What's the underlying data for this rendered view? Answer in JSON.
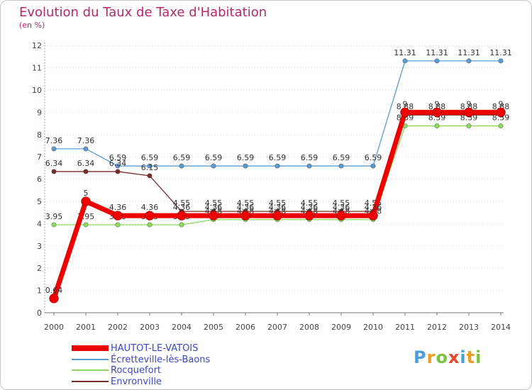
{
  "chart_data": {
    "type": "line",
    "title": "Evolution du Taux de Taxe d'Habitation",
    "subtitle": "(en %)",
    "xlabel": "",
    "ylabel": "",
    "ylim": [
      0,
      12
    ],
    "yticks": [
      0,
      1,
      2,
      3,
      4,
      5,
      6,
      7,
      8,
      9,
      10,
      11,
      12
    ],
    "categories": [
      "2000",
      "2001",
      "2002",
      "2003",
      "2004",
      "2005",
      "2006",
      "2007",
      "2008",
      "2009",
      "2010",
      "2011",
      "2012",
      "2013",
      "2014"
    ],
    "grid": "horizontal dotted",
    "legend_position": "bottom-left",
    "series": [
      {
        "name": "Écretteville-lès-Baons",
        "color": "#5b9bd5",
        "values": [
          7.36,
          7.36,
          6.59,
          6.59,
          6.59,
          6.59,
          6.59,
          6.59,
          6.59,
          6.59,
          6.59,
          11.31,
          11.31,
          11.31,
          11.31
        ],
        "labels": [
          "7.36",
          "7.36",
          "6.59",
          "6.59",
          "6.59",
          "6.59",
          "6.59",
          "6.59",
          "6.59",
          "6.59",
          "6.59",
          "11.31",
          "11.31",
          "11.31",
          "11.31"
        ]
      },
      {
        "name": "Rocquefort",
        "color": "#8ddb5a",
        "values": [
          3.95,
          3.95,
          3.95,
          3.95,
          3.95,
          4.18,
          4.18,
          4.18,
          4.18,
          4.18,
          4.18,
          8.39,
          8.39,
          8.39,
          8.39
        ],
        "labels": [
          "3.95",
          "3.95",
          "3.95",
          "3.95",
          "3.95",
          "4.18",
          "4.18",
          "4.18",
          "4.18",
          "4.18",
          "4.18",
          "8.39",
          "8.39",
          "8.39",
          "8.39"
        ]
      },
      {
        "name": "Envronville",
        "color": "#7a2b2b",
        "values": [
          6.34,
          6.34,
          6.34,
          6.15,
          4.55,
          4.55,
          4.55,
          4.55,
          4.55,
          4.55,
          4.55,
          8.88,
          8.88,
          8.88,
          8.88
        ],
        "labels": [
          "6.34",
          "6.34",
          "6.34",
          "6.15",
          "4.55",
          "4.55",
          "4.55",
          "4.55",
          "4.55",
          "4.55",
          "4.55",
          "8.88",
          "8.88",
          "8.88",
          "8.88"
        ]
      },
      {
        "name": "HAUTOT-LE-VATOIS",
        "color": "#ee0000",
        "values": [
          0.64,
          5,
          4.36,
          4.36,
          4.36,
          4.36,
          4.36,
          4.36,
          4.36,
          4.36,
          4.36,
          9,
          9,
          9,
          9
        ],
        "labels": [
          "0.64",
          "5",
          "4.36",
          "4.36",
          "4.36",
          "4.36",
          "4.36",
          "4.36",
          "4.36",
          "4.36",
          "4.36",
          "9",
          "9",
          "9",
          "9"
        ]
      }
    ]
  },
  "legend": {
    "items": [
      {
        "label": "HAUTOT-LE-VATOIS",
        "color": "#ee0000"
      },
      {
        "label": "Écretteville-lès-Baons",
        "color": "#5b9bd5"
      },
      {
        "label": "Rocquefort",
        "color": "#8ddb5a"
      },
      {
        "label": "Envronville",
        "color": "#7a2b2b"
      }
    ]
  },
  "brand": {
    "letters": [
      "P",
      "r",
      "o",
      "x",
      "i",
      "t",
      "i"
    ],
    "colors": [
      "#4aa0dc",
      "#f29b21",
      "#7cc242",
      "#e8452c",
      "#4aa0dc",
      "#f29b21",
      "#7cc242"
    ]
  }
}
